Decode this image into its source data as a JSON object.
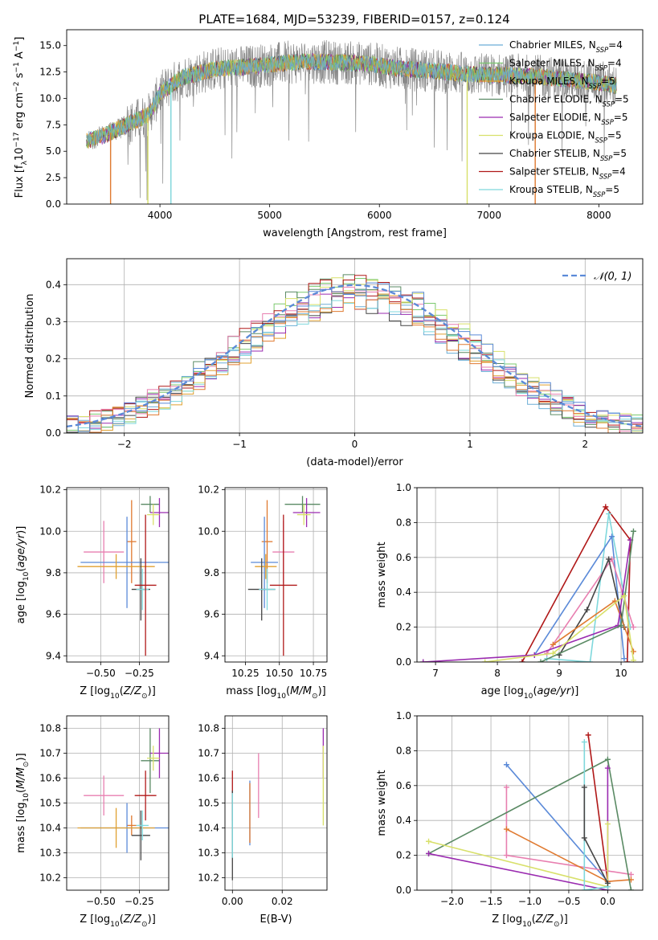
{
  "figure": {
    "title": "PLATE=1684, MJD=53239, FIBERID=0157, z=0.124"
  },
  "colors": {
    "grid": "#b0b0b0",
    "axis": "#000000",
    "normal_curve": "#5b8ad8"
  },
  "chart_data": [
    {
      "id": "spectrum",
      "type": "line",
      "xlabel": "wavelength [Angstrom, rest frame]",
      "ylabel": "Flux [fλ10⁻¹⁷ erg cm⁻² s⁻¹ A⁻¹]",
      "xlim": [
        3150,
        8400
      ],
      "ylim": [
        0,
        16.5
      ],
      "xticks": [
        4000,
        5000,
        6000,
        7000,
        8000
      ],
      "yticks": [
        0.0,
        2.5,
        5.0,
        7.5,
        10.0,
        12.5,
        15.0
      ],
      "grid": false,
      "legend_position": "right",
      "data_wavelength_range": [
        3330,
        8160
      ],
      "continuum": [
        [
          3330,
          6.0
        ],
        [
          3500,
          6.5
        ],
        [
          3700,
          7.5
        ],
        [
          3900,
          8.5
        ],
        [
          4000,
          10.5
        ],
        [
          4200,
          12.0
        ],
        [
          4500,
          12.8
        ],
        [
          4800,
          13.0
        ],
        [
          5000,
          13.2
        ],
        [
          5300,
          13.5
        ],
        [
          5600,
          13.4
        ],
        [
          5900,
          13.3
        ],
        [
          6200,
          12.8
        ],
        [
          6500,
          12.6
        ],
        [
          6800,
          12.3
        ],
        [
          7100,
          12.2
        ],
        [
          7400,
          12.1
        ],
        [
          7700,
          11.8
        ],
        [
          8000,
          11.5
        ],
        [
          8160,
          11.2
        ]
      ],
      "drops": [
        [
          3550,
          0.0
        ],
        [
          3890,
          0.0
        ],
        [
          4100,
          0.0
        ],
        [
          6800,
          0.0
        ],
        [
          7420,
          0.0
        ]
      ],
      "legend": [
        {
          "label": "Chabrier MILES, N",
          "sub": "SSP",
          "tail": "=4",
          "color": "#6baed6"
        },
        {
          "label": "Salpeter MILES, N",
          "sub": "SSP",
          "tail": "=4",
          "color": "#7bc96f"
        },
        {
          "label": "Kroupa MILES, N",
          "sub": "SSP",
          "tail": "=5",
          "color": "#e0a030"
        },
        {
          "label": "Chabrier ELODIE, N",
          "sub": "SSP",
          "tail": "=5",
          "color": "#5a8a64"
        },
        {
          "label": "Salpeter ELODIE, N",
          "sub": "SSP",
          "tail": "=5",
          "color": "#9a2bb0"
        },
        {
          "label": "Kroupa ELODIE, N",
          "sub": "SSP",
          "tail": "=5",
          "color": "#d8e06a"
        },
        {
          "label": "Chabrier STELIB, N",
          "sub": "SSP",
          "tail": "=5",
          "color": "#444444"
        },
        {
          "label": "Salpeter STELIB, N",
          "sub": "SSP",
          "tail": "=4",
          "color": "#b01818"
        },
        {
          "label": "Kroupa STELIB, N",
          "sub": "SSP",
          "tail": "=5",
          "color": "#7fd8dc"
        }
      ]
    },
    {
      "id": "residuals",
      "type": "line",
      "xlabel": "(data-model)/error",
      "ylabel": "Normed distribution",
      "xlim": [
        -2.5,
        2.5
      ],
      "ylim": [
        0,
        0.47
      ],
      "xticks": [
        -2,
        -1,
        0,
        1,
        2
      ],
      "yticks": [
        0.0,
        0.1,
        0.2,
        0.3,
        0.4
      ],
      "grid": true,
      "legend_position": "top-right",
      "normal_label": "𝒩(0, 1)",
      "bin_width": 0.1,
      "series_colors": [
        "#6baed6",
        "#7bc96f",
        "#e0a030",
        "#5a8a64",
        "#9a2bb0",
        "#d8e06a",
        "#444444",
        "#b01818",
        "#7fd8dc",
        "#e87fb0",
        "#e07a30",
        "#5b8ad8"
      ]
    },
    {
      "id": "age-z",
      "type": "scatter",
      "xlabel": "Z [log₁₀(Z/Z⊙)]",
      "ylabel": "age  [log₁₀(age/yr)]",
      "xlim": [
        -0.72,
        -0.06
      ],
      "ylim": [
        9.37,
        10.21
      ],
      "xticks": [
        -0.5,
        -0.25
      ],
      "xtick_labels": [
        "−0.50",
        "−0.25"
      ],
      "yticks": [
        9.4,
        9.6,
        9.8,
        10.0,
        10.2
      ],
      "ytick_labels": [
        "9.4",
        "9.6",
        "9.8",
        "10.0",
        "10.2"
      ],
      "grid": true,
      "points": [
        {
          "x": -0.18,
          "xerr": 0.06,
          "y": 10.13,
          "yerr": 0.04,
          "color": "#5a8a64"
        },
        {
          "x": -0.12,
          "xerr": 0.06,
          "y": 10.09,
          "yerr": 0.07,
          "color": "#9a2bb0"
        },
        {
          "x": -0.16,
          "xerr": 0.04,
          "y": 10.08,
          "yerr": 0.05,
          "color": "#d8e06a"
        },
        {
          "x": -0.3,
          "xerr": 0.03,
          "y": 9.95,
          "yerr": 0.2,
          "color": "#e07a30"
        },
        {
          "x": -0.48,
          "xerr": 0.13,
          "y": 9.9,
          "yerr": 0.15,
          "color": "#e87fb0"
        },
        {
          "x": -0.33,
          "xerr": 0.3,
          "y": 9.85,
          "yerr": 0.22,
          "color": "#5b8ad8"
        },
        {
          "x": -0.4,
          "xerr": 0.25,
          "y": 9.83,
          "yerr": 0.06,
          "color": "#e0a030"
        },
        {
          "x": -0.24,
          "xerr": 0.06,
          "y": 9.72,
          "yerr": 0.15,
          "color": "#444444"
        },
        {
          "x": -0.23,
          "xerr": 0.04,
          "y": 9.72,
          "yerr": 0.1,
          "color": "#7fd8dc"
        },
        {
          "x": -0.21,
          "xerr": 0.07,
          "y": 9.74,
          "yerr": 0.34,
          "color": "#b01818"
        }
      ]
    },
    {
      "id": "age-mass",
      "type": "scatter",
      "xlabel": "mass [log₁₀(M/M⊙)]",
      "ylabel": "",
      "xlim": [
        10.1,
        10.85
      ],
      "ylim": [
        9.37,
        10.21
      ],
      "xticks": [
        10.25,
        10.5,
        10.75
      ],
      "xtick_labels": [
        "10.25",
        "10.50",
        "10.75"
      ],
      "yticks": [
        9.4,
        9.6,
        9.8,
        10.0,
        10.2
      ],
      "ytick_labels": [
        "9.4",
        "9.6",
        "9.8",
        "10.0",
        "10.2"
      ],
      "grid": true,
      "points": [
        {
          "x": 10.67,
          "xerr": 0.13,
          "y": 10.13,
          "yerr": 0.04,
          "color": "#5a8a64"
        },
        {
          "x": 10.7,
          "xerr": 0.1,
          "y": 10.09,
          "yerr": 0.07,
          "color": "#9a2bb0"
        },
        {
          "x": 10.68,
          "xerr": 0.05,
          "y": 10.08,
          "yerr": 0.05,
          "color": "#d8e06a"
        },
        {
          "x": 10.41,
          "xerr": 0.04,
          "y": 9.95,
          "yerr": 0.2,
          "color": "#e07a30"
        },
        {
          "x": 10.53,
          "xerr": 0.08,
          "y": 9.9,
          "yerr": 0.15,
          "color": "#e87fb0"
        },
        {
          "x": 10.39,
          "xerr": 0.1,
          "y": 9.85,
          "yerr": 0.22,
          "color": "#5b8ad8"
        },
        {
          "x": 10.4,
          "xerr": 0.08,
          "y": 9.83,
          "yerr": 0.06,
          "color": "#e0a030"
        },
        {
          "x": 10.37,
          "xerr": 0.1,
          "y": 9.72,
          "yerr": 0.15,
          "color": "#444444"
        },
        {
          "x": 10.41,
          "xerr": 0.06,
          "y": 9.72,
          "yerr": 0.1,
          "color": "#7fd8dc"
        },
        {
          "x": 10.53,
          "xerr": 0.1,
          "y": 9.74,
          "yerr": 0.34,
          "color": "#b01818"
        }
      ]
    },
    {
      "id": "mw-age",
      "type": "line",
      "xlabel": "age  [log₁₀(age/yr)]",
      "ylabel": "mass weight",
      "xlim": [
        6.7,
        10.35
      ],
      "ylim": [
        0,
        1.0
      ],
      "xticks": [
        7,
        8,
        9,
        10
      ],
      "xtick_labels": [
        "7",
        "8",
        "9",
        "10"
      ],
      "yticks": [
        0.0,
        0.2,
        0.4,
        0.6,
        0.8,
        1.0
      ],
      "ytick_labels": [
        "0.0",
        "0.2",
        "0.4",
        "0.6",
        "0.8",
        "1.0"
      ],
      "grid": true,
      "series": [
        {
          "color": "#b01818",
          "points": [
            [
              8.4,
              0.0
            ],
            [
              9.75,
              0.89
            ],
            [
              10.15,
              0.7
            ],
            [
              10.1,
              0.0
            ]
          ]
        },
        {
          "color": "#7fd8dc",
          "points": [
            [
              8.8,
              0.02
            ],
            [
              9.5,
              0.0
            ],
            [
              9.8,
              0.85
            ],
            [
              10.15,
              0.2
            ]
          ]
        },
        {
          "color": "#5b8ad8",
          "points": [
            [
              8.6,
              0.04
            ],
            [
              9.85,
              0.72
            ],
            [
              10.05,
              0.02
            ]
          ]
        },
        {
          "color": "#e87fb0",
          "points": [
            [
              8.8,
              0.05
            ],
            [
              9.85,
              0.59
            ],
            [
              10.2,
              0.2
            ]
          ]
        },
        {
          "color": "#444444",
          "points": [
            [
              9.0,
              0.04
            ],
            [
              9.45,
              0.3
            ],
            [
              9.8,
              0.59
            ],
            [
              10.05,
              0.2
            ]
          ]
        },
        {
          "color": "#e07a30",
          "points": [
            [
              8.9,
              0.1
            ],
            [
              9.9,
              0.35
            ],
            [
              10.2,
              0.06
            ]
          ]
        },
        {
          "color": "#9a2bb0",
          "points": [
            [
              6.8,
              0.0
            ],
            [
              8.6,
              0.04
            ],
            [
              9.95,
              0.21
            ],
            [
              10.15,
              0.7
            ]
          ]
        },
        {
          "color": "#5a8a64",
          "points": [
            [
              8.7,
              0.0
            ],
            [
              10.0,
              0.21
            ],
            [
              10.2,
              0.75
            ]
          ]
        },
        {
          "color": "#d8e06a",
          "points": [
            [
              7.8,
              0.0
            ],
            [
              8.9,
              0.05
            ],
            [
              10.05,
              0.38
            ],
            [
              10.2,
              0.01
            ]
          ]
        }
      ]
    },
    {
      "id": "mass-z",
      "type": "scatter",
      "xlabel": "Z [log₁₀(Z/Z⊙)]",
      "ylabel": "mass [log₁₀(M/M⊙)]",
      "xlim": [
        -0.72,
        -0.06
      ],
      "ylim": [
        10.15,
        10.85
      ],
      "xticks": [
        -0.5,
        -0.25
      ],
      "xtick_labels": [
        "−0.50",
        "−0.25"
      ],
      "yticks": [
        10.2,
        10.3,
        10.4,
        10.5,
        10.6,
        10.7,
        10.8
      ],
      "ytick_labels": [
        "10.2",
        "10.3",
        "10.4",
        "10.5",
        "10.6",
        "10.7",
        "10.8"
      ],
      "grid": true,
      "points": [
        {
          "x": -0.18,
          "xerr": 0.06,
          "y": 10.67,
          "yerr": 0.13,
          "color": "#5a8a64"
        },
        {
          "x": -0.12,
          "xerr": 0.06,
          "y": 10.7,
          "yerr": 0.1,
          "color": "#9a2bb0"
        },
        {
          "x": -0.16,
          "xerr": 0.04,
          "y": 10.68,
          "yerr": 0.05,
          "color": "#d8e06a"
        },
        {
          "x": -0.3,
          "xerr": 0.03,
          "y": 10.41,
          "yerr": 0.04,
          "color": "#e07a30"
        },
        {
          "x": -0.48,
          "xerr": 0.13,
          "y": 10.53,
          "yerr": 0.08,
          "color": "#e87fb0"
        },
        {
          "x": -0.33,
          "xerr": 0.3,
          "y": 10.4,
          "yerr": 0.1,
          "color": "#5b8ad8"
        },
        {
          "x": -0.4,
          "xerr": 0.25,
          "y": 10.4,
          "yerr": 0.08,
          "color": "#e0a030"
        },
        {
          "x": -0.24,
          "xerr": 0.06,
          "y": 10.37,
          "yerr": 0.1,
          "color": "#444444"
        },
        {
          "x": -0.23,
          "xerr": 0.04,
          "y": 10.41,
          "yerr": 0.06,
          "color": "#7fd8dc"
        },
        {
          "x": -0.21,
          "xerr": 0.07,
          "y": 10.53,
          "yerr": 0.1,
          "color": "#b01818"
        }
      ]
    },
    {
      "id": "mass-ebv",
      "type": "scatter",
      "xlabel": "E(B-V)",
      "ylabel": "",
      "xlim": [
        -0.003,
        0.038
      ],
      "ylim": [
        10.15,
        10.85
      ],
      "xticks": [
        0.0,
        0.02
      ],
      "xtick_labels": [
        "0.00",
        "0.02"
      ],
      "yticks": [
        10.2,
        10.3,
        10.4,
        10.5,
        10.6,
        10.7,
        10.8
      ],
      "ytick_labels": [
        "10.2",
        "10.3",
        "10.4",
        "10.5",
        "10.6",
        "10.7",
        "10.8"
      ],
      "grid": true,
      "points": [
        {
          "x": 0.0,
          "xerr": 0.0,
          "y": 10.53,
          "yerr": 0.1,
          "color": "#b01818"
        },
        {
          "x": 0.0,
          "xerr": 0.0,
          "y": 10.37,
          "yerr": 0.18,
          "color": "#444444"
        },
        {
          "x": 0.0,
          "xerr": 0.0,
          "y": 10.41,
          "yerr": 0.13,
          "color": "#7fd8dc"
        },
        {
          "x": 0.007,
          "xerr": 0.0,
          "y": 10.46,
          "yerr": 0.13,
          "color": "#5b8ad8"
        },
        {
          "x": 0.007,
          "xerr": 0.0,
          "y": 10.46,
          "yerr": 0.12,
          "color": "#e07a30"
        },
        {
          "x": 0.0105,
          "xerr": 0.0,
          "y": 10.57,
          "yerr": 0.13,
          "color": "#e87fb0"
        },
        {
          "x": 0.0365,
          "xerr": 0.0,
          "y": 10.7,
          "yerr": 0.1,
          "color": "#9a2bb0"
        },
        {
          "x": 0.0365,
          "xerr": 0.0,
          "y": 10.57,
          "yerr": 0.16,
          "color": "#d8e06a"
        }
      ]
    },
    {
      "id": "mw-z",
      "type": "line",
      "xlabel": "Z [log₁₀(Z/Z⊙)]",
      "ylabel": "mass weight",
      "xlim": [
        -2.45,
        0.45
      ],
      "ylim": [
        0,
        1.0
      ],
      "xticks": [
        -2.0,
        -1.5,
        -1.0,
        -0.5,
        0.0
      ],
      "xtick_labels": [
        "−2.0",
        "−1.5",
        "−1.0",
        "−0.5",
        "0.0"
      ],
      "yticks": [
        0.0,
        0.2,
        0.4,
        0.6,
        0.8,
        1.0
      ],
      "ytick_labels": [
        "0.0",
        "0.2",
        "0.4",
        "0.6",
        "0.8",
        "1.0"
      ],
      "grid": true,
      "series": [
        {
          "color": "#b01818",
          "points": [
            [
              -0.25,
              0.89
            ],
            [
              0.0,
              0.05
            ]
          ]
        },
        {
          "color": "#5b8ad8",
          "points": [
            [
              -1.3,
              0.72
            ],
            [
              0.0,
              0.05
            ]
          ]
        },
        {
          "color": "#e87fb0",
          "points": [
            [
              -1.3,
              0.59
            ],
            [
              -1.3,
              0.2
            ],
            [
              0.3,
              0.09
            ]
          ]
        },
        {
          "color": "#e07a30",
          "points": [
            [
              -1.3,
              0.35
            ],
            [
              0.0,
              0.05
            ],
            [
              0.3,
              0.06
            ]
          ]
        },
        {
          "color": "#5a8a64",
          "points": [
            [
              -2.3,
              0.21
            ],
            [
              0.0,
              0.75
            ],
            [
              0.3,
              0.0
            ]
          ]
        },
        {
          "color": "#9a2bb0",
          "points": [
            [
              -2.3,
              0.21
            ],
            [
              0.0,
              0.0
            ],
            [
              0.0,
              0.7
            ]
          ]
        },
        {
          "color": "#d8e06a",
          "points": [
            [
              -2.3,
              0.28
            ],
            [
              0.0,
              0.02
            ],
            [
              0.0,
              0.38
            ]
          ]
        },
        {
          "color": "#7fd8dc",
          "points": [
            [
              -0.3,
              0.85
            ],
            [
              -0.3,
              0.0
            ],
            [
              0.0,
              0.02
            ]
          ]
        },
        {
          "color": "#444444",
          "points": [
            [
              -0.3,
              0.59
            ],
            [
              -0.3,
              0.3
            ],
            [
              0.0,
              0.04
            ]
          ]
        }
      ]
    }
  ]
}
